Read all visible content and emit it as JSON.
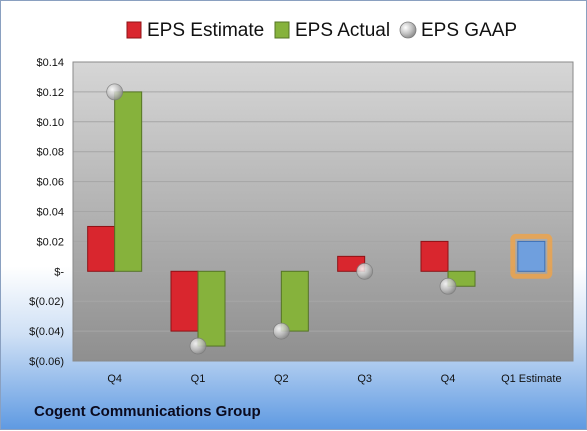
{
  "company_name": "Cogent Communications Group",
  "colors": {
    "estimate": "#d9262e",
    "actual": "#86b23c",
    "gaap": "#b0b0b0",
    "future_estimate": "#6f9fde",
    "highlight": "#f5a340",
    "plot_bg_top": "#d3d3d3",
    "plot_bg_bottom": "#949494"
  },
  "chart_data": {
    "type": "bar",
    "categories": [
      "Q4",
      "Q1",
      "Q2",
      "Q3",
      "Q4",
      "Q1 Estimate"
    ],
    "series": [
      {
        "name": "EPS Estimate",
        "values": [
          0.03,
          -0.04,
          null,
          0.01,
          0.02,
          0.02
        ]
      },
      {
        "name": "EPS Actual",
        "values": [
          0.12,
          -0.05,
          -0.04,
          null,
          -0.01,
          null
        ]
      },
      {
        "name": "EPS GAAP",
        "values": [
          0.12,
          -0.05,
          -0.04,
          0.0,
          -0.01,
          null
        ]
      }
    ],
    "ylim": [
      -0.06,
      0.14
    ],
    "yticks": [
      {
        "value": 0.14,
        "label": "$0.14"
      },
      {
        "value": 0.12,
        "label": "$0.12"
      },
      {
        "value": 0.1,
        "label": "$0.10"
      },
      {
        "value": 0.08,
        "label": "$0.08"
      },
      {
        "value": 0.06,
        "label": "$0.06"
      },
      {
        "value": 0.04,
        "label": "$0.04"
      },
      {
        "value": 0.02,
        "label": "$0.02"
      },
      {
        "value": 0.0,
        "label": "$-"
      },
      {
        "value": -0.02,
        "label": "$(0.02)"
      },
      {
        "value": -0.04,
        "label": "$(0.04)"
      },
      {
        "value": -0.06,
        "label": "$(0.06)"
      }
    ],
    "legend_position": "top",
    "grid": true
  }
}
